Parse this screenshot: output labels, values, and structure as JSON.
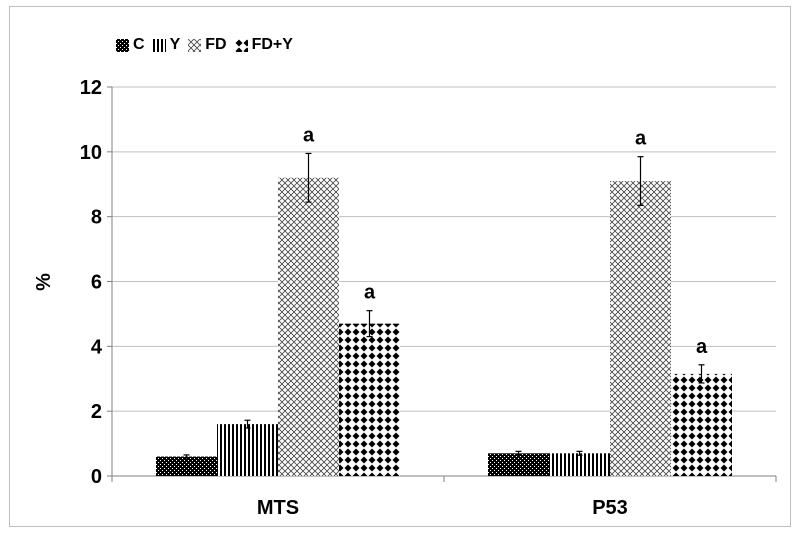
{
  "chart_data": {
    "type": "bar",
    "title": "",
    "xlabel": "",
    "ylabel": "%",
    "ylim": [
      0,
      12
    ],
    "yticks": [
      0,
      2,
      4,
      6,
      8,
      10,
      12
    ],
    "categories": [
      "MTS",
      "P53"
    ],
    "series": [
      {
        "name": "C",
        "values": [
          0.6,
          0.7
        ],
        "errors": [
          0.05,
          0.06
        ],
        "labels": [
          "",
          ""
        ]
      },
      {
        "name": "Y",
        "values": [
          1.6,
          0.7
        ],
        "errors": [
          0.12,
          0.06
        ],
        "labels": [
          "",
          ""
        ]
      },
      {
        "name": "FD",
        "values": [
          9.2,
          9.1
        ],
        "errors": [
          0.75,
          0.75
        ],
        "labels": [
          "a",
          "a"
        ]
      },
      {
        "name": "FD+Y",
        "values": [
          4.7,
          3.15
        ],
        "errors": [
          0.4,
          0.28
        ],
        "labels": [
          "a",
          "a"
        ]
      }
    ],
    "grid": true,
    "legend_position": "top-left"
  }
}
